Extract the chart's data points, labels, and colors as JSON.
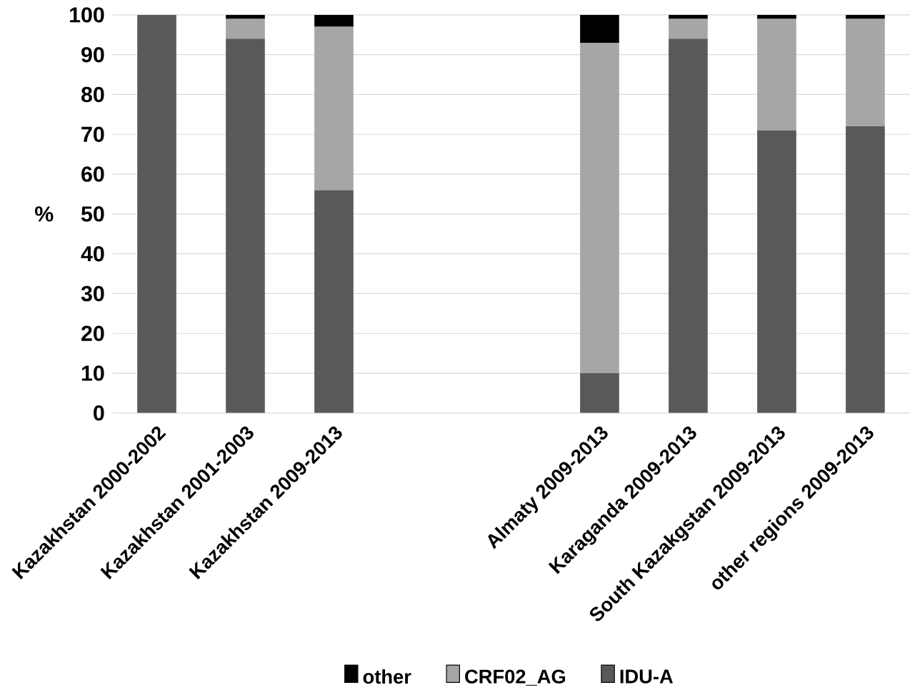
{
  "chart_data": {
    "type": "bar",
    "stacked": true,
    "ylabel": "%",
    "categories": [
      "Kazakhstan 2000-2002",
      "Kazakhstan 2001-2003",
      "Kazakhstan 2009-2013",
      null,
      null,
      "Almaty 2009-2013",
      "Karaganda 2009-2013",
      "South Kazakgstan 2009-2013",
      "other regions 2009-2013"
    ],
    "series": [
      {
        "name": "IDU-A",
        "color": "#595959",
        "values": [
          100,
          94,
          56,
          null,
          null,
          10,
          94,
          71,
          72
        ]
      },
      {
        "name": "CRF02_AG",
        "color": "#a6a6a6",
        "values": [
          0,
          5,
          41,
          null,
          null,
          83,
          5,
          28,
          27
        ]
      },
      {
        "name": "other",
        "color": "#000000",
        "values": [
          0,
          1,
          3,
          null,
          null,
          7,
          1,
          1,
          1
        ]
      }
    ],
    "ylim": [
      0,
      100
    ],
    "yticks": [
      0,
      10,
      20,
      30,
      40,
      50,
      60,
      70,
      80,
      90,
      100
    ],
    "grid": "y",
    "legend": "bottom"
  }
}
